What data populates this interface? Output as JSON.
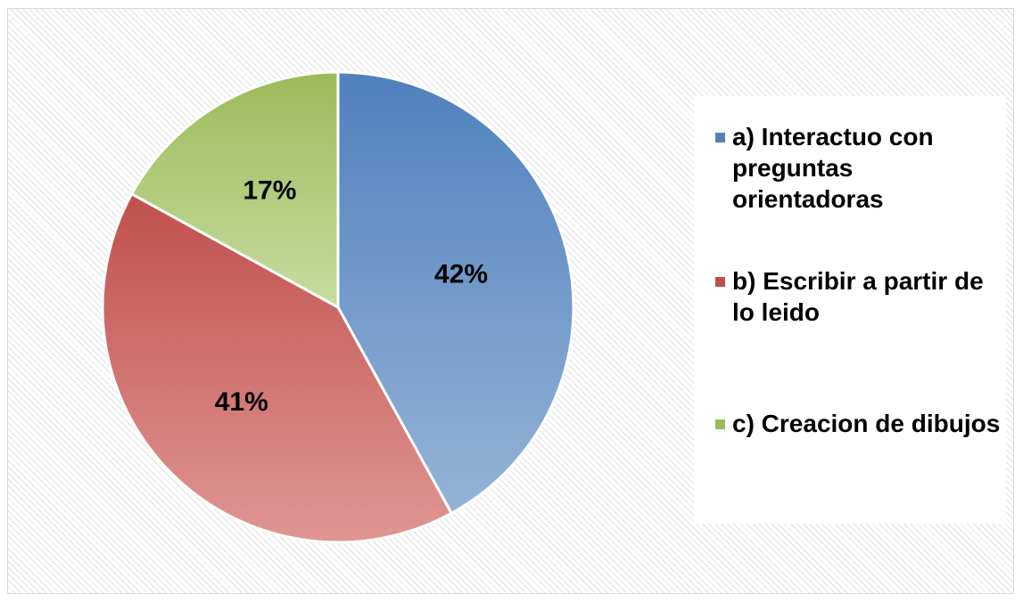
{
  "chart_data": {
    "type": "pie",
    "categories": [
      "a) Interactuo con preguntas orientadoras",
      "b) Escribir a partir de lo leido",
      "c) Creacion de dibujos"
    ],
    "values": [
      42,
      41,
      17
    ],
    "data_labels": [
      "42%",
      "41%",
      "17%"
    ],
    "colors": [
      "#4f81bd",
      "#c0504d",
      "#9bbb59"
    ],
    "legend_position": "right",
    "title": ""
  }
}
